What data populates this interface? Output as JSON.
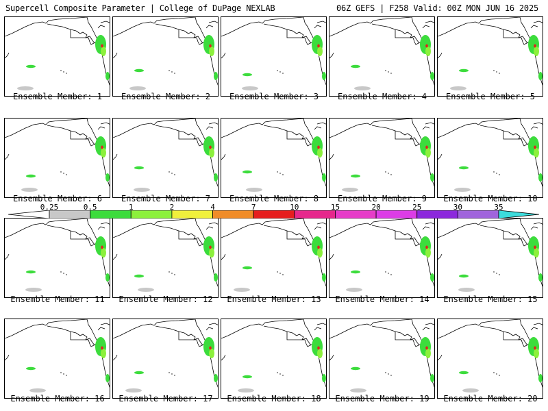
{
  "header": {
    "left": "Supercell Composite Parameter | College of DuPage NEXLAB",
    "right": "06Z GEFS | F258 Valid: 00Z MON JUN 16 2025"
  },
  "panels": [
    {
      "caption": "Ensemble Member: 1"
    },
    {
      "caption": "Ensemble Member: 2"
    },
    {
      "caption": "Ensemble Member: 3"
    },
    {
      "caption": "Ensemble Member: 4"
    },
    {
      "caption": "Ensemble Member: 5"
    },
    {
      "caption": "Ensemble Member: 6"
    },
    {
      "caption": "Ensemble Member: 7"
    },
    {
      "caption": "Ensemble Member: 8"
    },
    {
      "caption": "Ensemble Member: 9"
    },
    {
      "caption": "Ensemble Member: 10"
    },
    {
      "caption": "Ensemble Member: 11"
    },
    {
      "caption": "Ensemble Member: 12"
    },
    {
      "caption": "Ensemble Member: 13"
    },
    {
      "caption": "Ensemble Member: 14"
    },
    {
      "caption": "Ensemble Member: 15"
    },
    {
      "caption": "Ensemble Member: 16"
    },
    {
      "caption": "Ensemble Member: 17"
    },
    {
      "caption": "Ensemble Member: 18"
    },
    {
      "caption": "Ensemble Member: 19"
    },
    {
      "caption": "Ensemble Member: 20"
    }
  ],
  "colorbar": {
    "labels": [
      "0.25",
      "0.5",
      "1",
      "2",
      "4",
      "7",
      "10",
      "15",
      "20",
      "25",
      "30",
      "35"
    ],
    "colors": [
      "#ffffff",
      "#c8c8c8",
      "#3cdc3c",
      "#8cf03c",
      "#f0f03c",
      "#f08c28",
      "#e61e1e",
      "#e6288c",
      "#e63cc8",
      "#dc3ce6",
      "#8c28dc",
      "#a064dc",
      "#3cdcdc"
    ]
  }
}
